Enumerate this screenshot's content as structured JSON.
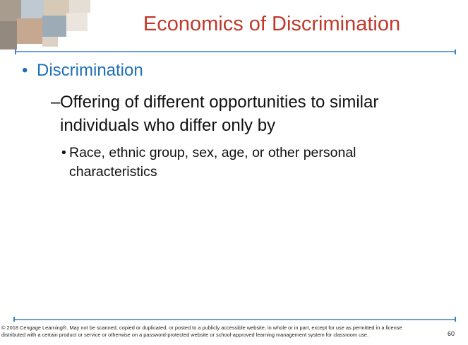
{
  "header": {
    "title": "Economics of Discrimination"
  },
  "bullets": [
    {
      "level": 1,
      "text": "Discrimination"
    },
    {
      "level": 2,
      "text": "Offering of different opportunities to similar individuals who differ only by"
    },
    {
      "level": 3,
      "text": "Race, ethnic group, sex, age, or other personal characteristics"
    }
  ],
  "footer": {
    "copyright": "© 2018 Cengage Learning®. May not be scanned, copied or duplicated, or posted to a publicly accessible website, in whole or in part, except for use as permitted in a license distributed with a certain product or service or otherwise on a password-protected website or school-approved learning management system for classroom use.",
    "page_number": "60"
  }
}
